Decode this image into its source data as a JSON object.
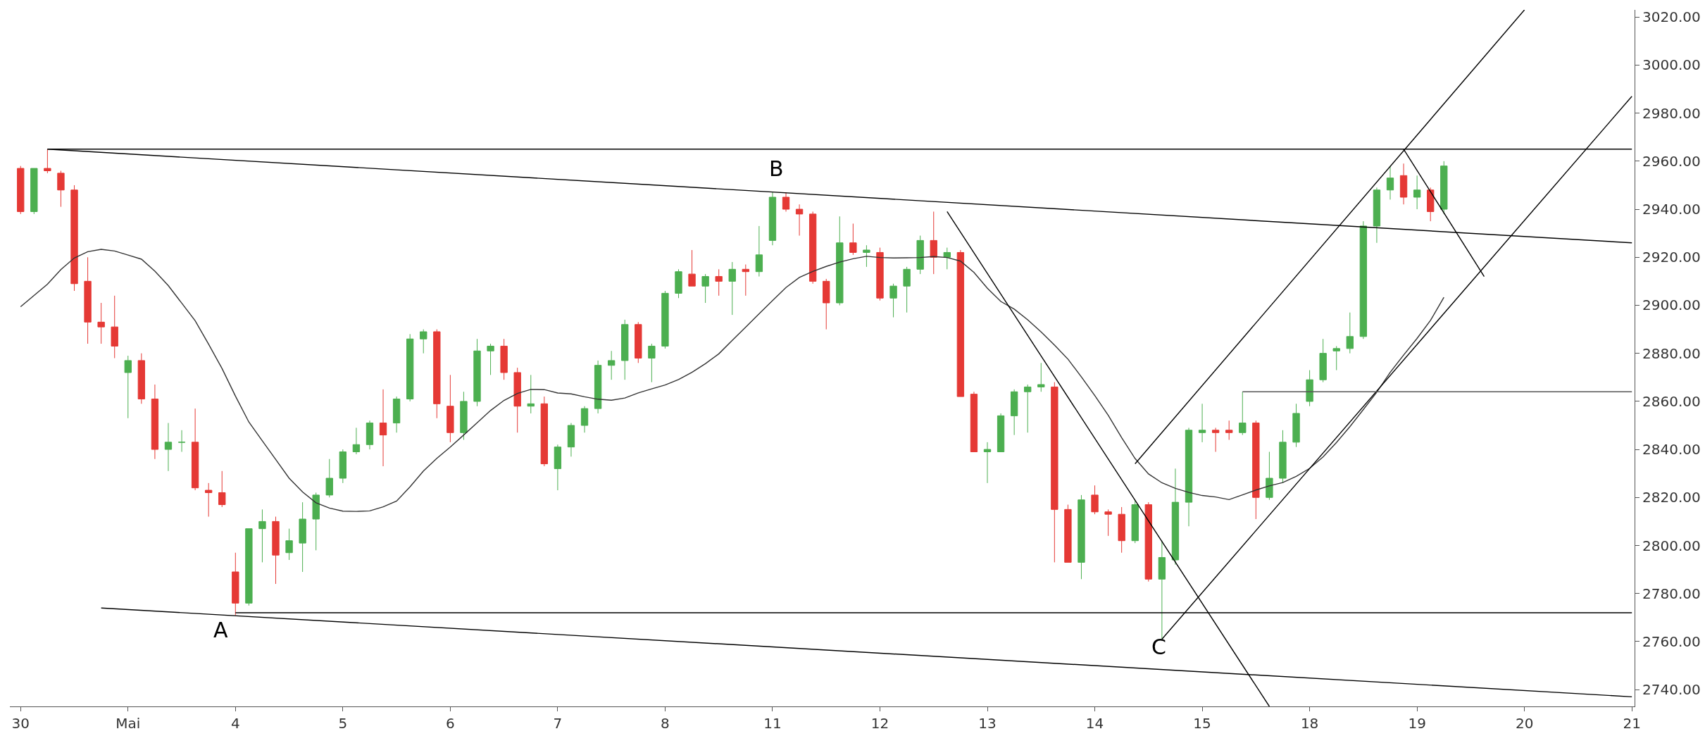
{
  "chart_data": {
    "type": "candlestick",
    "categories": [
      "30",
      null,
      null,
      null,
      null,
      null,
      null,
      null,
      "Mai",
      null,
      null,
      null,
      null,
      null,
      null,
      null,
      "4",
      null,
      null,
      null,
      null,
      null,
      null,
      null,
      "5",
      null,
      null,
      null,
      null,
      null,
      null,
      null,
      "6",
      null,
      null,
      null,
      null,
      null,
      null,
      null,
      "7",
      null,
      null,
      null,
      null,
      null,
      null,
      null,
      "8",
      null,
      null,
      null,
      null,
      null,
      null,
      null,
      "11",
      null,
      null,
      null,
      null,
      null,
      null,
      null,
      "12",
      null,
      null,
      null,
      null,
      null,
      null,
      null,
      "13",
      null,
      null,
      null,
      null,
      null,
      null,
      null,
      "14",
      null,
      null,
      null,
      null,
      null,
      null,
      null,
      "15",
      null,
      null,
      null,
      null,
      null,
      null,
      null,
      "18",
      null,
      null,
      null,
      null,
      null,
      null,
      null,
      "19",
      null,
      null,
      null,
      null,
      null,
      null,
      null,
      "20",
      null,
      null,
      null,
      null,
      null,
      null,
      null,
      "21"
    ],
    "ohlc": [
      [
        2957,
        2958,
        2938,
        2939
      ],
      [
        2939,
        2957,
        2938,
        2957
      ],
      [
        2957,
        2965,
        2955,
        2956
      ],
      [
        2955,
        2956,
        2941,
        2948
      ],
      [
        2948,
        2950,
        2906,
        2909
      ],
      [
        2910,
        2920,
        2884,
        2893
      ],
      [
        2893,
        2901,
        2884,
        2891
      ],
      [
        2891,
        2904,
        2878,
        2883
      ],
      [
        2872,
        2879,
        2853,
        2877
      ],
      [
        2877,
        2880,
        2859,
        2861
      ],
      [
        2861,
        2867,
        2836,
        2840
      ],
      [
        2840,
        2851,
        2831,
        2843
      ],
      [
        2843,
        2848,
        2839,
        2843
      ],
      [
        2843,
        2857,
        2823,
        2824
      ],
      [
        2823,
        2826,
        2812,
        2822
      ],
      [
        2822,
        2831,
        2816,
        2817
      ],
      [
        2789,
        2797,
        2771,
        2776
      ],
      [
        2776,
        2807,
        2775,
        2807
      ],
      [
        2807,
        2815,
        2793,
        2810
      ],
      [
        2810,
        2812,
        2784,
        2796
      ],
      [
        2797,
        2807,
        2794,
        2802
      ],
      [
        2801,
        2818,
        2789,
        2811
      ],
      [
        2811,
        2822,
        2798,
        2821
      ],
      [
        2821,
        2836,
        2820,
        2828
      ],
      [
        2828,
        2840,
        2826,
        2839
      ],
      [
        2839,
        2849,
        2838,
        2842
      ],
      [
        2842,
        2852,
        2840,
        2851
      ],
      [
        2851,
        2865,
        2833,
        2846
      ],
      [
        2851,
        2862,
        2847,
        2861
      ],
      [
        2861,
        2888,
        2860,
        2886
      ],
      [
        2886,
        2890,
        2880,
        2889
      ],
      [
        2889,
        2890,
        2853,
        2859
      ],
      [
        2858,
        2871,
        2843,
        2847
      ],
      [
        2847,
        2864,
        2844,
        2860
      ],
      [
        2860,
        2886,
        2858,
        2881
      ],
      [
        2881,
        2884,
        2871,
        2883
      ],
      [
        2883,
        2886,
        2869,
        2872
      ],
      [
        2872,
        2874,
        2847,
        2858
      ],
      [
        2858,
        2871,
        2855,
        2859
      ],
      [
        2859,
        2862,
        2833,
        2834
      ],
      [
        2832,
        2842,
        2823,
        2841
      ],
      [
        2841,
        2851,
        2837,
        2850
      ],
      [
        2850,
        2858,
        2847,
        2857
      ],
      [
        2857,
        2877,
        2855,
        2875
      ],
      [
        2875,
        2881,
        2869,
        2877
      ],
      [
        2877,
        2894,
        2869,
        2892
      ],
      [
        2892,
        2893,
        2876,
        2878
      ],
      [
        2878,
        2884,
        2868,
        2883
      ],
      [
        2883,
        2906,
        2882,
        2905
      ],
      [
        2905,
        2915,
        2903,
        2914
      ],
      [
        2913,
        2923,
        2908,
        2908
      ],
      [
        2908,
        2913,
        2901,
        2912
      ],
      [
        2912,
        2915,
        2904,
        2910
      ],
      [
        2910,
        2918,
        2896,
        2915
      ],
      [
        2915,
        2917,
        2904,
        2914
      ],
      [
        2914,
        2933,
        2912,
        2921
      ],
      [
        2927,
        2947,
        2925,
        2945
      ],
      [
        2945,
        2947,
        2939,
        2940
      ],
      [
        2940,
        2942,
        2929,
        2938
      ],
      [
        2938,
        2939,
        2909,
        2910
      ],
      [
        2910,
        2911,
        2890,
        2901
      ],
      [
        2901,
        2937,
        2900,
        2926
      ],
      [
        2926,
        2934,
        2921,
        2922
      ],
      [
        2922,
        2925,
        2916,
        2923
      ],
      [
        2922,
        2924,
        2902,
        2903
      ],
      [
        2903,
        2909,
        2895,
        2908
      ],
      [
        2908,
        2916,
        2897,
        2915
      ],
      [
        2915,
        2929,
        2913,
        2927
      ],
      [
        2927,
        2939,
        2913,
        2920
      ],
      [
        2920,
        2924,
        2915,
        2922
      ],
      [
        2922,
        2923,
        2862,
        2862
      ],
      [
        2863,
        2864,
        2839,
        2839
      ],
      [
        2839,
        2843,
        2826,
        2840
      ],
      [
        2839,
        2855,
        2839,
        2854
      ],
      [
        2854,
        2865,
        2846,
        2864
      ],
      [
        2864,
        2867,
        2847,
        2866
      ],
      [
        2866,
        2876,
        2864,
        2867
      ],
      [
        2866,
        2868,
        2793,
        2815
      ],
      [
        2815,
        2817,
        2793,
        2793
      ],
      [
        2793,
        2821,
        2786,
        2819
      ],
      [
        2821,
        2825,
        2813,
        2814
      ],
      [
        2814,
        2815,
        2804,
        2813
      ],
      [
        2813,
        2816,
        2797,
        2802
      ],
      [
        2802,
        2819,
        2801,
        2817
      ],
      [
        2817,
        2818,
        2785,
        2786
      ],
      [
        2786,
        2802,
        2761,
        2795
      ],
      [
        2794,
        2832,
        2792,
        2818
      ],
      [
        2818,
        2849,
        2808,
        2848
      ],
      [
        2847,
        2859,
        2843,
        2848
      ],
      [
        2848,
        2849,
        2839,
        2847
      ],
      [
        2848,
        2852,
        2844,
        2847
      ],
      [
        2847,
        2864,
        2846,
        2851
      ],
      [
        2851,
        2852,
        2811,
        2820
      ],
      [
        2820,
        2839,
        2819,
        2828
      ],
      [
        2828,
        2848,
        2826,
        2843
      ],
      [
        2843,
        2859,
        2841,
        2855
      ],
      [
        2860,
        2873,
        2858,
        2869
      ],
      [
        2869,
        2886,
        2868,
        2880
      ],
      [
        2881,
        2883,
        2873,
        2882
      ],
      [
        2882,
        2897,
        2880,
        2887
      ],
      [
        2887,
        2935,
        2886,
        2933
      ],
      [
        2933,
        2949,
        2926,
        2948
      ],
      [
        2948,
        2958,
        2944,
        2953
      ],
      [
        2954,
        2959,
        2942,
        2945
      ],
      [
        2945,
        2954,
        2940,
        2948
      ],
      [
        2948,
        2949,
        2935,
        2939
      ],
      [
        2940,
        2960,
        2938,
        2958
      ],
      null,
      null,
      null,
      null,
      null,
      null,
      null,
      null,
      null,
      null,
      null,
      null,
      null,
      null
    ],
    "colors": [
      "#e53935",
      "#4caf50",
      "#e53935",
      "#e53935",
      "#e53935",
      "#e53935",
      "#e53935",
      "#e53935",
      "#4caf50",
      "#e53935",
      "#e53935",
      "#4caf50",
      "#4caf50",
      "#e53935",
      "#e53935",
      "#e53935",
      "#e53935",
      "#4caf50",
      "#4caf50",
      "#e53935",
      "#4caf50",
      "#4caf50",
      "#4caf50",
      "#4caf50",
      "#4caf50",
      "#4caf50",
      "#4caf50",
      "#e53935",
      "#4caf50",
      "#4caf50",
      "#4caf50",
      "#e53935",
      "#e53935",
      "#4caf50",
      "#4caf50",
      "#4caf50",
      "#e53935",
      "#e53935",
      "#4caf50",
      "#e53935",
      "#4caf50",
      "#4caf50",
      "#4caf50",
      "#4caf50",
      "#4caf50",
      "#4caf50",
      "#e53935",
      "#4caf50",
      "#4caf50",
      "#4caf50",
      "#e53935",
      "#4caf50",
      "#e53935",
      "#4caf50",
      "#e53935",
      "#4caf50",
      "#4caf50",
      "#e53935",
      "#e53935",
      "#e53935",
      "#e53935",
      "#4caf50",
      "#e53935",
      "#4caf50",
      "#e53935",
      "#4caf50",
      "#4caf50",
      "#4caf50",
      "#e53935",
      "#4caf50",
      "#e53935",
      "#e53935",
      "#4caf50",
      "#4caf50",
      "#4caf50",
      "#4caf50",
      "#4caf50",
      "#e53935",
      "#e53935",
      "#4caf50",
      "#e53935",
      "#e53935",
      "#e53935",
      "#4caf50",
      "#e53935",
      "#4caf50",
      "#4caf50",
      "#4caf50",
      "#4caf50",
      "#e53935",
      "#e53935",
      "#4caf50",
      "#e53935",
      "#4caf50",
      "#4caf50",
      "#4caf50",
      "#4caf50",
      "#4caf50",
      "#4caf50",
      "#4caf50",
      "#4caf50",
      "#4caf50",
      "#4caf50",
      "#e53935",
      "#4caf50",
      "#e53935",
      "#4caf50",
      null,
      null,
      null,
      null,
      null,
      null,
      null,
      null,
      null,
      null,
      null,
      null,
      null,
      null
    ],
    "series": [
      {
        "type": "line",
        "color": "#333333",
        "values": [
          2899.4,
          2904.1,
          2908.8,
          2914.9,
          2919.7,
          2922.3,
          2923.3,
          2922.6,
          2920.9,
          2919.2,
          2914.2,
          2908.2,
          2900.9,
          2893.6,
          2883.8,
          2873.7,
          2862.2,
          2851.4,
          2843.6,
          2835.8,
          2828.0,
          2822.3,
          2817.8,
          2815.6,
          2814.3,
          2814.2,
          2814.4,
          2816.1,
          2818.5,
          2824.4,
          2831.0,
          2836.3,
          2841.0,
          2846.0,
          2851.1,
          2856.2,
          2860.4,
          2863.3,
          2865.0,
          2864.9,
          2863.5,
          2863.1,
          2861.9,
          2860.9,
          2860.5,
          2861.4,
          2863.5,
          2865.2,
          2866.8,
          2869.1,
          2872.1,
          2875.7,
          2879.8,
          2885.4,
          2890.9,
          2896.5,
          2902.0,
          2907.4,
          2911.6,
          2914.1,
          2916.2,
          2918.0,
          2919.4,
          2920.4,
          2919.9,
          2919.7,
          2919.8,
          2919.9,
          2920.3,
          2919.9,
          2918.4,
          2913.7,
          2907.1,
          2901.6,
          2898.4,
          2894.0,
          2888.9,
          2883.4,
          2877.6,
          2870.2,
          2862.4,
          2854.2,
          2844.9,
          2836.2,
          2829.8,
          2826.1,
          2823.8,
          2822.1,
          2820.8,
          2820.2,
          2819.1,
          2821.1,
          2823.1,
          2824.8,
          2826.2,
          2828.8,
          2832.1,
          2836.9,
          2842.9,
          2849.5,
          2856.6,
          2863.8,
          2872.1,
          2879.3,
          2886.2,
          2893.7,
          2903.3,
          null,
          null,
          null,
          null,
          null,
          null,
          null,
          null,
          null,
          null,
          null,
          null,
          null,
          null
        ]
      },
      {
        "type": "line",
        "color": "#000000",
        "values": [
          null,
          null,
          2965,
          null,
          null,
          null,
          null,
          null,
          null,
          null,
          null,
          null,
          null,
          null,
          null,
          null,
          null,
          null,
          null,
          null,
          null,
          null,
          null,
          null,
          null,
          null,
          null,
          null,
          null,
          null,
          null,
          null,
          null,
          null,
          null,
          null,
          null,
          null,
          null,
          null,
          null,
          null,
          null,
          null,
          null,
          null,
          null,
          null,
          null,
          null,
          null,
          null,
          null,
          null,
          null,
          null,
          null,
          null,
          null,
          null,
          null,
          null,
          null,
          null,
          null,
          null,
          null,
          null,
          null,
          null,
          null,
          null,
          null,
          null,
          null,
          null,
          null,
          null,
          null,
          null,
          null,
          null,
          null,
          null,
          null,
          null,
          null,
          null,
          null,
          null,
          null,
          null,
          null,
          null,
          null,
          null,
          null,
          null,
          null,
          null,
          null,
          null,
          null,
          null,
          null,
          null,
          null,
          null,
          null,
          null,
          null,
          null,
          null,
          null,
          null,
          null,
          null,
          null,
          null,
          null,
          2965
        ]
      },
      {
        "type": "line",
        "color": "#000000",
        "values": [
          null,
          null,
          2965,
          null,
          null,
          null,
          null,
          null,
          null,
          null,
          null,
          null,
          null,
          null,
          null,
          null,
          null,
          null,
          null,
          null,
          null,
          null,
          null,
          null,
          null,
          null,
          null,
          null,
          null,
          null,
          null,
          null,
          null,
          null,
          null,
          null,
          null,
          null,
          null,
          null,
          null,
          null,
          null,
          null,
          null,
          null,
          null,
          null,
          null,
          null,
          null,
          null,
          null,
          null,
          null,
          null,
          null,
          null,
          null,
          null,
          null,
          null,
          null,
          null,
          null,
          null,
          null,
          null,
          null,
          null,
          null,
          null,
          null,
          null,
          null,
          null,
          null,
          null,
          null,
          null,
          null,
          null,
          null,
          null,
          null,
          null,
          null,
          null,
          null,
          null,
          null,
          null,
          null,
          null,
          null,
          null,
          null,
          null,
          null,
          null,
          null,
          null,
          null,
          null,
          null,
          null,
          null,
          null,
          null,
          null,
          null,
          null,
          null,
          null,
          null,
          null,
          null,
          null,
          null,
          null,
          2926
        ]
      },
      {
        "type": "line",
        "color": "#000000",
        "values": [
          null,
          null,
          null,
          null,
          null,
          null,
          null,
          null,
          null,
          null,
          null,
          null,
          null,
          null,
          null,
          null,
          2772,
          null,
          null,
          null,
          null,
          null,
          null,
          null,
          null,
          null,
          null,
          null,
          null,
          null,
          null,
          null,
          null,
          null,
          null,
          null,
          null,
          null,
          null,
          null,
          null,
          null,
          null,
          null,
          null,
          null,
          null,
          null,
          null,
          null,
          null,
          null,
          null,
          null,
          null,
          null,
          null,
          null,
          null,
          null,
          null,
          null,
          null,
          null,
          null,
          null,
          null,
          null,
          null,
          null,
          null,
          null,
          null,
          null,
          null,
          null,
          null,
          null,
          null,
          null,
          null,
          null,
          null,
          null,
          null,
          null,
          null,
          null,
          null,
          null,
          null,
          null,
          null,
          null,
          null,
          null,
          null,
          null,
          null,
          null,
          null,
          null,
          null,
          null,
          null,
          null,
          null,
          null,
          null,
          null,
          null,
          null,
          null,
          null,
          null,
          null,
          null,
          null,
          null,
          null,
          2772
        ]
      },
      {
        "type": "line",
        "color": "#000000",
        "values": [
          null,
          null,
          null,
          null,
          null,
          null,
          2774,
          null,
          null,
          null,
          null,
          null,
          null,
          null,
          null,
          null,
          null,
          null,
          null,
          null,
          null,
          null,
          null,
          null,
          null,
          null,
          null,
          null,
          null,
          null,
          null,
          null,
          null,
          null,
          null,
          null,
          null,
          null,
          null,
          null,
          null,
          null,
          null,
          null,
          null,
          null,
          null,
          null,
          null,
          null,
          null,
          null,
          null,
          null,
          null,
          null,
          null,
          null,
          null,
          null,
          null,
          null,
          null,
          null,
          null,
          null,
          null,
          null,
          null,
          null,
          null,
          null,
          null,
          null,
          null,
          null,
          null,
          null,
          null,
          null,
          null,
          null,
          null,
          null,
          null,
          null,
          null,
          null,
          null,
          null,
          null,
          null,
          null,
          null,
          null,
          null,
          null,
          null,
          null,
          null,
          null,
          null,
          null,
          null,
          null,
          null,
          null,
          null,
          null,
          null,
          null,
          null,
          null,
          null,
          null,
          null,
          null,
          null,
          null,
          null,
          2737
        ]
      },
      {
        "type": "line",
        "color": "#000000",
        "values": [
          null,
          null,
          null,
          null,
          null,
          null,
          null,
          null,
          null,
          null,
          null,
          null,
          null,
          null,
          null,
          null,
          null,
          null,
          null,
          null,
          null,
          null,
          null,
          null,
          null,
          null,
          null,
          null,
          null,
          null,
          null,
          null,
          null,
          null,
          null,
          null,
          null,
          null,
          null,
          null,
          null,
          null,
          null,
          null,
          null,
          null,
          null,
          null,
          null,
          null,
          null,
          null,
          null,
          null,
          null,
          null,
          null,
          null,
          null,
          null,
          null,
          null,
          null,
          null,
          null,
          null,
          null,
          null,
          null,
          2939,
          null,
          null,
          null,
          null,
          null,
          null,
          null,
          null,
          null,
          null,
          null,
          null,
          null,
          null,
          null,
          null,
          null,
          null,
          null,
          null,
          null,
          null,
          null,
          2733,
          null,
          null,
          null,
          null,
          null,
          null,
          null,
          null,
          null,
          null,
          null,
          null,
          null,
          null,
          null,
          null,
          null,
          null,
          null,
          null,
          null,
          null,
          null,
          null,
          null,
          null,
          null
        ]
      },
      {
        "type": "line",
        "color": "#000000",
        "values": [
          null,
          null,
          null,
          null,
          null,
          null,
          null,
          null,
          null,
          null,
          null,
          null,
          null,
          null,
          null,
          null,
          null,
          null,
          null,
          null,
          null,
          null,
          null,
          null,
          null,
          null,
          null,
          null,
          null,
          null,
          null,
          null,
          null,
          null,
          null,
          null,
          null,
          null,
          null,
          null,
          null,
          null,
          null,
          null,
          null,
          null,
          null,
          null,
          null,
          null,
          null,
          null,
          null,
          null,
          null,
          null,
          null,
          null,
          null,
          null,
          null,
          null,
          null,
          null,
          null,
          null,
          null,
          null,
          null,
          null,
          null,
          null,
          null,
          null,
          null,
          null,
          null,
          null,
          null,
          null,
          null,
          null,
          null,
          2834,
          null,
          null,
          null,
          null,
          null,
          null,
          null,
          null,
          null,
          null,
          null,
          null,
          null,
          null,
          null,
          null,
          null,
          null,
          null,
          null,
          null,
          null,
          null,
          null,
          null,
          null,
          null,
          null,
          3023,
          null,
          null,
          null,
          null,
          null,
          null,
          null,
          null
        ]
      },
      {
        "type": "line",
        "color": "#000000",
        "values": [
          null,
          null,
          null,
          null,
          null,
          null,
          null,
          null,
          null,
          null,
          null,
          null,
          null,
          null,
          null,
          null,
          null,
          null,
          null,
          null,
          null,
          null,
          null,
          null,
          null,
          null,
          null,
          null,
          null,
          null,
          null,
          null,
          null,
          null,
          null,
          null,
          null,
          null,
          null,
          null,
          null,
          null,
          null,
          null,
          null,
          null,
          null,
          null,
          null,
          null,
          null,
          null,
          null,
          null,
          null,
          null,
          null,
          null,
          null,
          null,
          null,
          null,
          null,
          null,
          null,
          null,
          null,
          null,
          null,
          null,
          null,
          null,
          null,
          null,
          null,
          null,
          null,
          null,
          null,
          null,
          null,
          null,
          null,
          null,
          null,
          2761,
          null,
          null,
          null,
          null,
          null,
          null,
          null,
          null,
          null,
          null,
          null,
          null,
          null,
          null,
          null,
          null,
          null,
          null,
          null,
          null,
          null,
          null,
          null,
          null,
          null,
          null,
          null,
          null,
          null,
          null,
          null,
          null,
          null,
          null,
          2987
        ]
      },
      {
        "type": "line",
        "color": "#000000",
        "values": [
          null,
          null,
          null,
          null,
          null,
          null,
          null,
          null,
          null,
          null,
          null,
          null,
          null,
          null,
          null,
          null,
          null,
          null,
          null,
          null,
          null,
          null,
          null,
          null,
          null,
          null,
          null,
          null,
          null,
          null,
          null,
          null,
          null,
          null,
          null,
          null,
          null,
          null,
          null,
          null,
          null,
          null,
          null,
          null,
          null,
          null,
          null,
          null,
          null,
          null,
          null,
          null,
          null,
          null,
          null,
          null,
          null,
          null,
          null,
          null,
          null,
          null,
          null,
          null,
          null,
          null,
          null,
          null,
          null,
          null,
          null,
          null,
          null,
          null,
          null,
          null,
          null,
          null,
          null,
          null,
          null,
          null,
          null,
          null,
          null,
          null,
          null,
          null,
          null,
          null,
          null,
          null,
          null,
          null,
          null,
          null,
          null,
          null,
          null,
          null,
          null,
          null,
          null,
          2965,
          null,
          null,
          null,
          null,
          null,
          2912,
          null,
          null,
          null,
          null,
          null,
          null,
          null,
          null,
          null,
          null,
          null
        ]
      },
      {
        "type": "line",
        "color": "#555555",
        "values": [
          null,
          null,
          null,
          null,
          null,
          null,
          null,
          null,
          null,
          null,
          null,
          null,
          null,
          null,
          null,
          null,
          null,
          null,
          null,
          null,
          null,
          null,
          null,
          null,
          null,
          null,
          null,
          null,
          null,
          null,
          null,
          null,
          null,
          null,
          null,
          null,
          null,
          null,
          null,
          null,
          null,
          null,
          null,
          null,
          null,
          null,
          null,
          null,
          null,
          null,
          null,
          null,
          null,
          null,
          null,
          null,
          null,
          null,
          null,
          null,
          null,
          null,
          null,
          null,
          null,
          null,
          null,
          null,
          null,
          null,
          null,
          null,
          null,
          null,
          null,
          null,
          null,
          null,
          null,
          null,
          null,
          null,
          null,
          null,
          null,
          null,
          null,
          null,
          null,
          null,
          null,
          2864,
          null,
          null,
          null,
          null,
          null,
          null,
          null,
          null,
          null,
          null,
          null,
          null,
          null,
          null,
          null,
          null,
          null,
          null,
          null,
          null,
          null,
          null,
          null,
          null,
          null,
          null,
          null,
          null,
          2864
        ]
      }
    ],
    "annotations": [
      "A",
      "B",
      "C"
    ],
    "ylim": [
      2733,
      3023
    ],
    "yticks": [
      {
        "value": 2740,
        "label": "2740.00"
      },
      {
        "value": 2760,
        "label": "2760.00"
      },
      {
        "value": 2780,
        "label": "2780.00"
      },
      {
        "value": 2800,
        "label": "2800.00"
      },
      {
        "value": 2820,
        "label": "2820.00"
      },
      {
        "value": 2840,
        "label": "2840.00"
      },
      {
        "value": 2860,
        "label": "2860.00"
      },
      {
        "value": 2880,
        "label": "2880.00"
      },
      {
        "value": 2900,
        "label": "2900.00"
      },
      {
        "value": 2920,
        "label": "2920.00"
      },
      {
        "value": 2940,
        "label": "2940.00"
      },
      {
        "value": 2960,
        "label": "2960.00"
      },
      {
        "value": 2980,
        "label": "2980.00"
      },
      {
        "value": 3000,
        "label": "3000.00"
      },
      {
        "value": 3020,
        "label": "3020.00"
      }
    ]
  }
}
